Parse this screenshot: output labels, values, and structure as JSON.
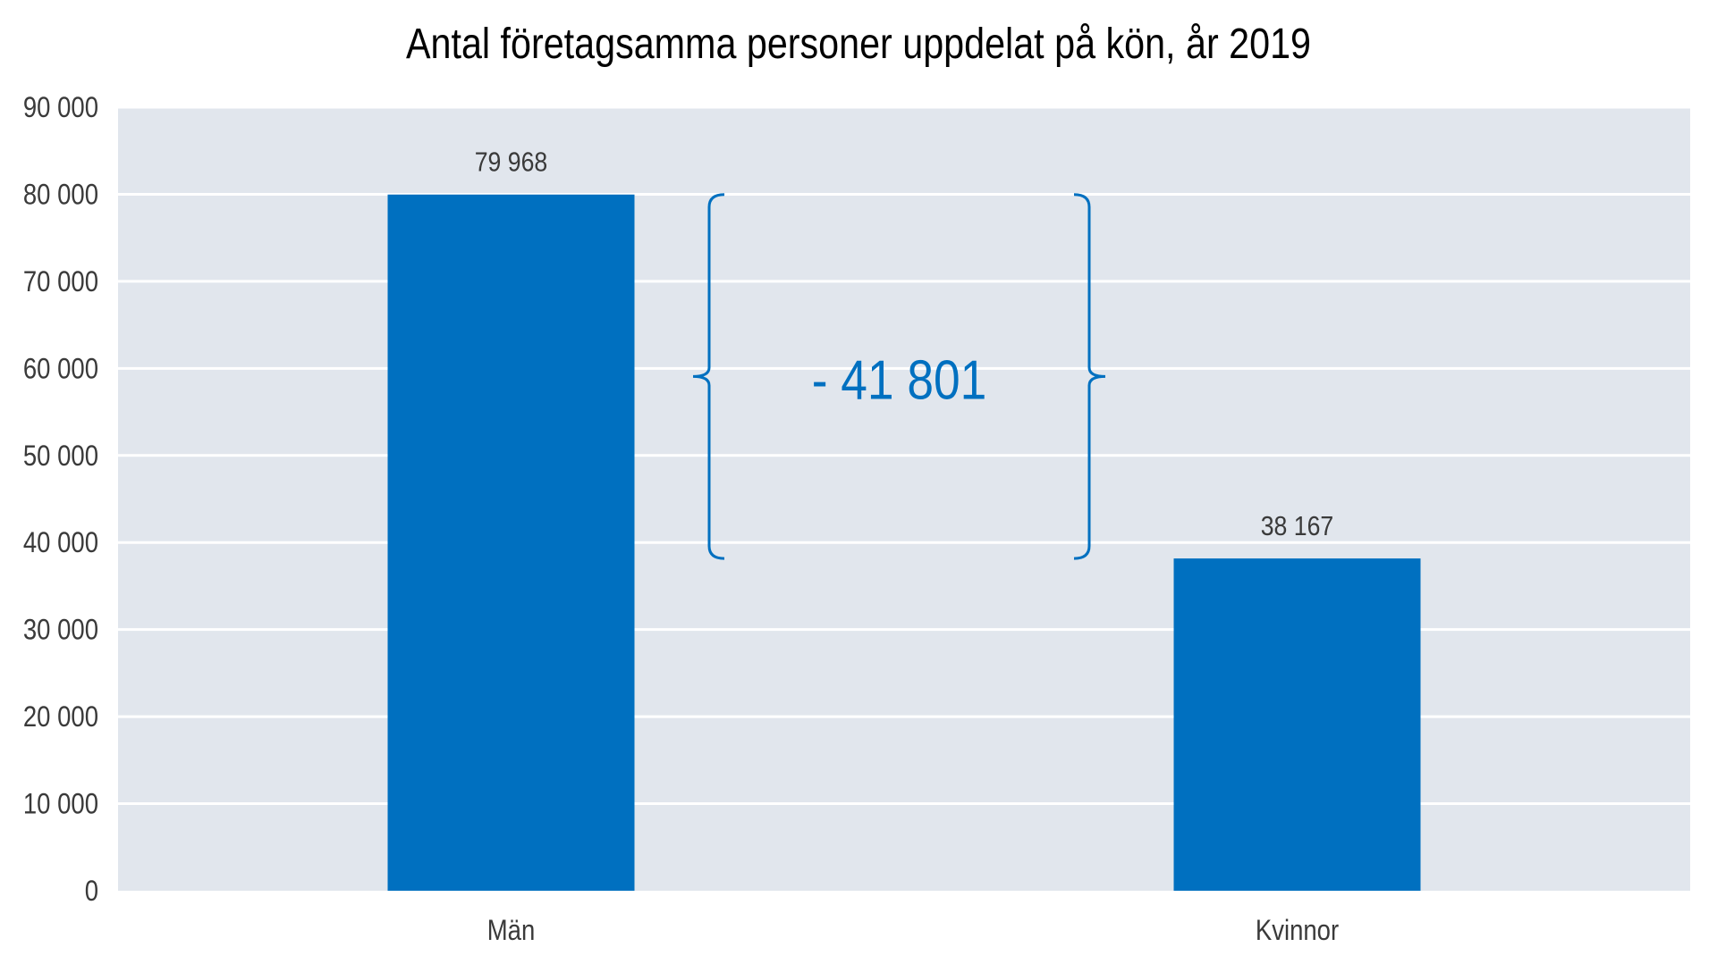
{
  "chart_data": {
    "type": "bar",
    "title": "Antal företagsamma personer uppdelat på kön, år 2019",
    "categories": [
      "Män",
      "Kvinnor"
    ],
    "values": [
      79968,
      38167
    ],
    "value_labels": [
      "79 968",
      "38 167"
    ],
    "ylim": [
      0,
      90000
    ],
    "yticks": [
      0,
      10000,
      20000,
      30000,
      40000,
      50000,
      60000,
      70000,
      80000,
      90000
    ],
    "ytick_labels": [
      "0",
      "10 000",
      "20 000",
      "30 000",
      "40 000",
      "50 000",
      "60 000",
      "70 000",
      "80 000",
      "90 000"
    ],
    "xlabel": "",
    "ylabel": "",
    "grid": true,
    "annotation": {
      "text": "- 41 801",
      "from_value": 79968,
      "to_value": 38167
    },
    "colors": {
      "bar": "#0070c0",
      "plot_background": "#e1e6ed",
      "gridline": "#ffffff",
      "annotation": "#0070c0"
    }
  }
}
